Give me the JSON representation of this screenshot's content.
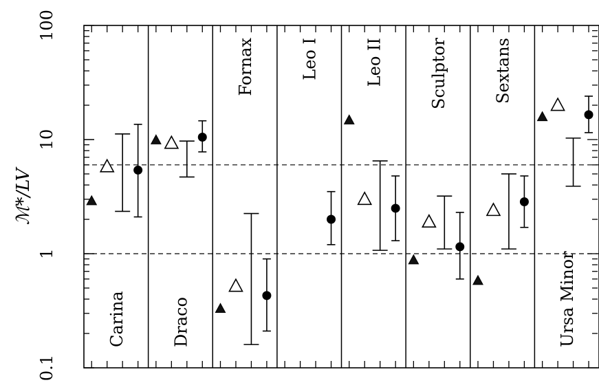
{
  "chart_data": {
    "type": "scatter",
    "title": "",
    "ylabel": "ℳ*/LV",
    "yscale": "log",
    "ylim": [
      0.1,
      100
    ],
    "yticks": [
      {
        "value": 0.1,
        "label": "0.1"
      },
      {
        "value": 1,
        "label": "1"
      },
      {
        "value": 10,
        "label": "10"
      },
      {
        "value": 100,
        "label": "100"
      }
    ],
    "reference_lines": [
      1,
      6
    ],
    "panels": [
      {
        "name": "Carina",
        "filled_triangle": 2.9,
        "open_triangle": 5.8,
        "cross_range": [
          2.35,
          11.2
        ],
        "filled_circle": {
          "value": 5.4,
          "low": 2.1,
          "high": 13.6
        }
      },
      {
        "name": "Draco",
        "filled_triangle": 9.9,
        "open_triangle": 9.3,
        "cross_range": [
          4.7,
          9.7
        ],
        "filled_circle": {
          "value": 10.5,
          "low": 7.8,
          "high": 14.6
        }
      },
      {
        "name": "Fornax",
        "filled_triangle": 0.33,
        "open_triangle": 0.52,
        "cross_range": [
          0.16,
          2.25
        ],
        "filled_circle": {
          "value": 0.43,
          "low": 0.21,
          "high": 0.9
        }
      },
      {
        "name": "Leo I",
        "filled_triangle": null,
        "open_triangle": null,
        "cross_range": null,
        "filled_circle": {
          "value": 2.0,
          "low": 1.2,
          "high": 3.5
        }
      },
      {
        "name": "Leo II",
        "filled_triangle": 14.8,
        "open_triangle": 3.0,
        "cross_range": [
          1.07,
          6.5
        ],
        "filled_circle": {
          "value": 2.5,
          "low": 1.3,
          "high": 4.8
        }
      },
      {
        "name": "Sculptor",
        "filled_triangle": 0.88,
        "open_triangle": 1.9,
        "cross_range": [
          1.1,
          3.2
        ],
        "filled_circle": {
          "value": 1.15,
          "low": 0.6,
          "high": 2.3
        }
      },
      {
        "name": "Sextans",
        "filled_triangle": 0.58,
        "open_triangle": 2.4,
        "cross_range": [
          1.1,
          5.0
        ],
        "filled_circle": {
          "value": 2.85,
          "low": 1.7,
          "high": 4.8
        }
      },
      {
        "name": "Ursa Minor",
        "filled_triangle": 15.8,
        "open_triangle": 20.0,
        "cross_range": [
          3.9,
          10.3
        ],
        "filled_circle": {
          "value": 16.5,
          "low": 11.5,
          "high": 24.0
        }
      }
    ]
  }
}
